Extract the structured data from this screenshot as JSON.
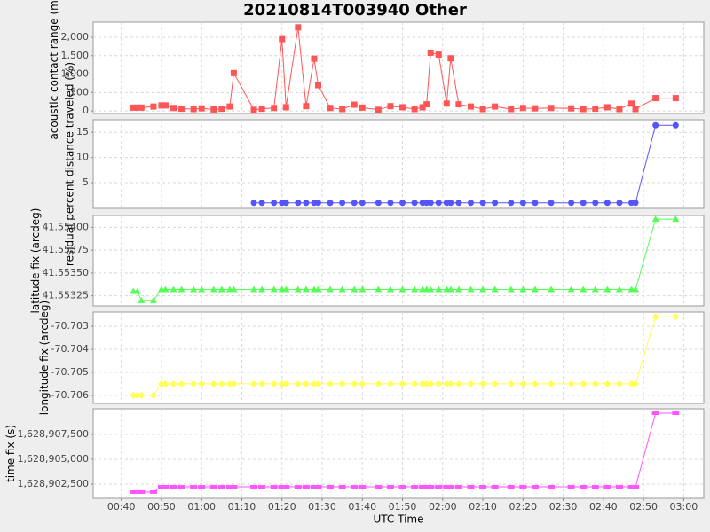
{
  "chart_data": [
    {
      "type": "line",
      "title": "20210814T003940 Other",
      "y_label": "acoustic contact range (m)",
      "color": "#ff5555",
      "marker": "square",
      "grid": true,
      "xlim": [
        "00:33",
        "03:05"
      ],
      "xticks": [
        "00:40",
        "00:50",
        "01:00",
        "01:10",
        "01:20",
        "01:30",
        "01:40",
        "01:50",
        "02:00",
        "02:10",
        "02:20",
        "02:30",
        "02:40",
        "02:50",
        "03:00"
      ],
      "ylim": [
        -70,
        2410
      ],
      "yticks": [
        0,
        {
          "value": 500,
          "label": "500"
        },
        {
          "value": 1000,
          "label": "1,000"
        },
        {
          "value": 1500,
          "label": "1,500"
        },
        {
          "value": 2000,
          "label": "2,000"
        }
      ],
      "x": [
        "00:43",
        "00:44",
        "00:45",
        "00:48",
        "00:50",
        "00:51",
        "00:53",
        "00:55",
        "00:58",
        "01:00",
        "01:03",
        "01:05",
        "01:07",
        "01:08",
        "01:13",
        "01:15",
        "01:18",
        "01:20",
        "01:21",
        "01:24",
        "01:26",
        "01:28",
        "01:29",
        "01:32",
        "01:35",
        "01:38",
        "01:40",
        "01:44",
        "01:47",
        "01:50",
        "01:53",
        "01:55",
        "01:56",
        "01:57",
        "01:59",
        "02:01",
        "02:02",
        "02:04",
        "02:07",
        "02:10",
        "02:13",
        "02:17",
        "02:20",
        "02:23",
        "02:27",
        "02:32",
        "02:35",
        "02:38",
        "02:41",
        "02:44",
        "02:47",
        "02:48",
        "02:53",
        "02:58"
      ],
      "values": [
        90,
        90,
        90,
        120,
        150,
        150,
        80,
        60,
        50,
        70,
        40,
        60,
        120,
        1030,
        30,
        60,
        80,
        1950,
        100,
        2270,
        130,
        1420,
        700,
        80,
        50,
        170,
        90,
        30,
        130,
        100,
        50,
        100,
        180,
        1580,
        1530,
        200,
        1430,
        180,
        120,
        50,
        120,
        50,
        80,
        70,
        80,
        70,
        50,
        60,
        100,
        50,
        200,
        50,
        350,
        350
      ]
    },
    {
      "type": "line",
      "y_label": "residual percent distance traveled (%)",
      "color": "#5555ff",
      "marker": "circle",
      "grid": true,
      "xlim": [
        "00:33",
        "03:05"
      ],
      "xticks": [
        "00:40",
        "00:50",
        "01:00",
        "01:10",
        "01:20",
        "01:30",
        "01:40",
        "01:50",
        "02:00",
        "02:10",
        "02:20",
        "02:30",
        "02:40",
        "02:50",
        "03:00"
      ],
      "ylim": [
        -0.1,
        17.5
      ],
      "yticks": [
        5,
        10,
        15
      ],
      "x": [
        "00:43",
        "00:44",
        "00:45",
        "00:48",
        "00:50",
        "00:51",
        "00:53",
        "00:55",
        "00:58",
        "01:00",
        "01:03",
        "01:05",
        "01:07",
        "01:08",
        "01:13",
        "01:15",
        "01:18",
        "01:20",
        "01:21",
        "01:24",
        "01:26",
        "01:28",
        "01:29",
        "01:32",
        "01:35",
        "01:38",
        "01:40",
        "01:44",
        "01:47",
        "01:50",
        "01:53",
        "01:55",
        "01:56",
        "01:57",
        "01:59",
        "02:01",
        "02:02",
        "02:04",
        "02:07",
        "02:10",
        "02:13",
        "02:17",
        "02:20",
        "02:23",
        "02:27",
        "02:32",
        "02:35",
        "02:38",
        "02:41",
        "02:44",
        "02:47",
        "02:48",
        "02:53",
        "02:58"
      ],
      "values": [
        null,
        null,
        null,
        null,
        null,
        null,
        null,
        null,
        null,
        null,
        null,
        null,
        null,
        null,
        1,
        1,
        1,
        1,
        1,
        1,
        1,
        1,
        1,
        1,
        1,
        1,
        1,
        1,
        1,
        1,
        1,
        1,
        1,
        1,
        1,
        1,
        1,
        1,
        1,
        1,
        1,
        1,
        1,
        1,
        1,
        1,
        1,
        1,
        1,
        1,
        1,
        1,
        16.4,
        16.4
      ]
    },
    {
      "type": "line",
      "y_label": "latitude fix (arcdeg)",
      "color": "#55ff55",
      "marker": "triangle",
      "grid": true,
      "xlim": [
        "00:33",
        "03:05"
      ],
      "xticks": [
        "00:40",
        "00:50",
        "01:00",
        "01:10",
        "01:20",
        "01:30",
        "01:40",
        "01:50",
        "02:00",
        "02:10",
        "02:20",
        "02:30",
        "02:40",
        "02:50",
        "03:00"
      ],
      "ylim": [
        41.55314,
        41.55413
      ],
      "yticks": [
        41.55325,
        {
          "value": 41.5535,
          "label": "41.55350"
        },
        41.55375,
        {
          "value": 41.554,
          "label": "41.55400"
        }
      ],
      "x": [
        "00:43",
        "00:44",
        "00:45",
        "00:48",
        "00:50",
        "00:51",
        "00:53",
        "00:55",
        "00:58",
        "01:00",
        "01:03",
        "01:05",
        "01:07",
        "01:08",
        "01:13",
        "01:15",
        "01:18",
        "01:20",
        "01:21",
        "01:24",
        "01:26",
        "01:28",
        "01:29",
        "01:32",
        "01:35",
        "01:38",
        "01:40",
        "01:44",
        "01:47",
        "01:50",
        "01:53",
        "01:55",
        "01:56",
        "01:57",
        "01:59",
        "02:01",
        "02:02",
        "02:04",
        "02:07",
        "02:10",
        "02:13",
        "02:17",
        "02:20",
        "02:23",
        "02:27",
        "02:32",
        "02:35",
        "02:38",
        "02:41",
        "02:44",
        "02:47",
        "02:48",
        "02:53",
        "02:58"
      ],
      "values": [
        41.5533,
        41.5533,
        41.5532,
        41.5532,
        41.55332,
        41.55332,
        41.55332,
        41.55332,
        41.55332,
        41.55332,
        41.55332,
        41.55332,
        41.55332,
        41.55332,
        41.55332,
        41.55332,
        41.55332,
        41.55332,
        41.55332,
        41.55332,
        41.55332,
        41.55332,
        41.55332,
        41.55332,
        41.55332,
        41.55332,
        41.55332,
        41.55332,
        41.55332,
        41.55332,
        41.55332,
        41.55332,
        41.55332,
        41.55332,
        41.55332,
        41.55332,
        41.55332,
        41.55332,
        41.55332,
        41.55332,
        41.55332,
        41.55332,
        41.55332,
        41.55332,
        41.55332,
        41.55332,
        41.55332,
        41.55332,
        41.55332,
        41.55332,
        41.55332,
        41.55332,
        41.55409,
        41.55409
      ]
    },
    {
      "type": "line",
      "y_label": "longitude fix (arcdeg)",
      "color": "#ffff55",
      "marker": "diamond",
      "grid": true,
      "xlim": [
        "00:33",
        "03:05"
      ],
      "xticks": [
        "00:40",
        "00:50",
        "01:00",
        "01:10",
        "01:20",
        "01:30",
        "01:40",
        "01:50",
        "02:00",
        "02:10",
        "02:20",
        "02:30",
        "02:40",
        "02:50",
        "03:00"
      ],
      "ylim": [
        -70.70635,
        -70.70238
      ],
      "yticks": [
        -70.706,
        -70.705,
        -70.704,
        -70.703
      ],
      "x": [
        "00:43",
        "00:44",
        "00:45",
        "00:48",
        "00:50",
        "00:51",
        "00:53",
        "00:55",
        "00:58",
        "01:00",
        "01:03",
        "01:05",
        "01:07",
        "01:08",
        "01:13",
        "01:15",
        "01:18",
        "01:20",
        "01:21",
        "01:24",
        "01:26",
        "01:28",
        "01:29",
        "01:32",
        "01:35",
        "01:38",
        "01:40",
        "01:44",
        "01:47",
        "01:50",
        "01:53",
        "01:55",
        "01:56",
        "01:57",
        "01:59",
        "02:01",
        "02:02",
        "02:04",
        "02:07",
        "02:10",
        "02:13",
        "02:17",
        "02:20",
        "02:23",
        "02:27",
        "02:32",
        "02:35",
        "02:38",
        "02:41",
        "02:44",
        "02:47",
        "02:48",
        "02:53",
        "02:58"
      ],
      "values": [
        -70.706,
        -70.706,
        -70.706,
        -70.706,
        -70.7055,
        -70.7055,
        -70.7055,
        -70.7055,
        -70.7055,
        -70.7055,
        -70.7055,
        -70.7055,
        -70.7055,
        -70.7055,
        -70.7055,
        -70.7055,
        -70.7055,
        -70.7055,
        -70.7055,
        -70.7055,
        -70.7055,
        -70.7055,
        -70.7055,
        -70.7055,
        -70.7055,
        -70.7055,
        -70.7055,
        -70.7055,
        -70.7055,
        -70.7055,
        -70.7055,
        -70.7055,
        -70.7055,
        -70.7055,
        -70.7055,
        -70.7055,
        -70.7055,
        -70.7055,
        -70.7055,
        -70.7055,
        -70.7055,
        -70.7055,
        -70.7055,
        -70.7055,
        -70.7055,
        -70.7055,
        -70.7055,
        -70.7055,
        -70.7055,
        -70.7055,
        -70.7055,
        -70.7055,
        -70.70258,
        -70.70258
      ]
    },
    {
      "type": "line",
      "y_label": "time fix (s)",
      "x_label": "UTC Time",
      "color": "#ff55ff",
      "marker": "rect",
      "grid": true,
      "xlim": [
        "00:33",
        "03:05"
      ],
      "xticks": [
        "00:40",
        "00:50",
        "01:00",
        "01:10",
        "01:20",
        "01:30",
        "01:40",
        "01:50",
        "02:00",
        "02:10",
        "02:20",
        "02:30",
        "02:40",
        "02:50",
        "03:00"
      ],
      "ylim": [
        1628901070,
        1628910090
      ],
      "yticks": [
        {
          "value": 1628902500,
          "label": "1,628,902,500"
        },
        {
          "value": 1628905000,
          "label": "1,628,905,000"
        },
        {
          "value": 1628907500,
          "label": "1,628,907,500"
        }
      ],
      "x": [
        "00:43",
        "00:44",
        "00:45",
        "00:48",
        "00:50",
        "00:51",
        "00:53",
        "00:55",
        "00:58",
        "01:00",
        "01:03",
        "01:05",
        "01:07",
        "01:08",
        "01:13",
        "01:15",
        "01:18",
        "01:20",
        "01:21",
        "01:24",
        "01:26",
        "01:28",
        "01:29",
        "01:32",
        "01:35",
        "01:38",
        "01:40",
        "01:44",
        "01:47",
        "01:50",
        "01:53",
        "01:55",
        "01:56",
        "01:57",
        "01:59",
        "02:01",
        "02:02",
        "02:04",
        "02:07",
        "02:10",
        "02:13",
        "02:17",
        "02:20",
        "02:23",
        "02:27",
        "02:32",
        "02:35",
        "02:38",
        "02:41",
        "02:44",
        "02:47",
        "02:48",
        "02:53",
        "02:58"
      ],
      "values": [
        1628901700,
        1628901700,
        1628901700,
        1628901700,
        1628902230,
        1628902230,
        1628902230,
        1628902230,
        1628902230,
        1628902230,
        1628902230,
        1628902230,
        1628902230,
        1628902230,
        1628902230,
        1628902230,
        1628902230,
        1628902230,
        1628902230,
        1628902230,
        1628902230,
        1628902230,
        1628902230,
        1628902230,
        1628902230,
        1628902230,
        1628902230,
        1628902230,
        1628902230,
        1628902230,
        1628902230,
        1628902230,
        1628902230,
        1628902230,
        1628902230,
        1628902230,
        1628902230,
        1628902230,
        1628902230,
        1628902230,
        1628902230,
        1628902230,
        1628902230,
        1628902230,
        1628902230,
        1628902230,
        1628902230,
        1628902230,
        1628902230,
        1628902230,
        1628902230,
        1628902230,
        1628909640,
        1628909640
      ]
    }
  ]
}
